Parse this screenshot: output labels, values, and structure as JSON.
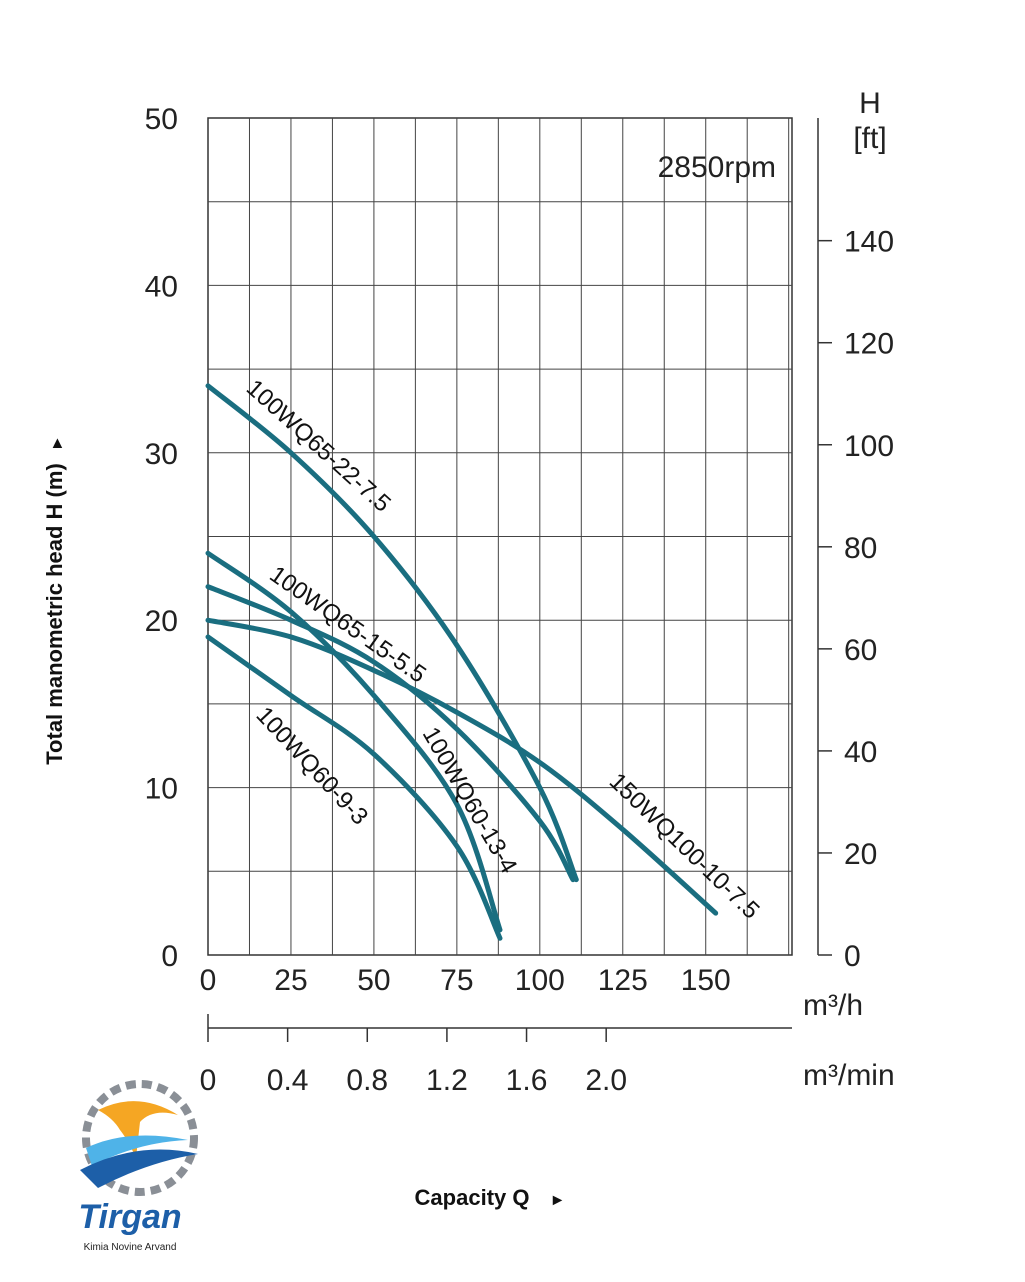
{
  "chart_data": {
    "type": "line",
    "title": "",
    "annotation": "2850rpm",
    "ylabel": "Total manometric head H (m)",
    "ylabel_arrow": "►",
    "xlabel": "Capacity Q",
    "xlabel_arrow": "►",
    "ylim": [
      0,
      50
    ],
    "xlim": [
      0,
      176
    ],
    "y_ticks": [
      "0",
      "10",
      "20",
      "30",
      "40",
      "50"
    ],
    "x_ticks": [
      "0",
      "25",
      "50",
      "75",
      "100",
      "125",
      "150"
    ],
    "x_units": "m³/h",
    "secondary_x": {
      "units": "m³/min",
      "ticks": [
        "0",
        "0.4",
        "0.8",
        "1.2",
        "1.6",
        "2.0"
      ],
      "tick_values": [
        0,
        0.4,
        0.8,
        1.2,
        1.6,
        2.0
      ]
    },
    "secondary_y": {
      "title_line1": "H",
      "title_line2": "[ft]",
      "ticks": [
        "0",
        "20",
        "40",
        "60",
        "80",
        "100",
        "120",
        "140"
      ],
      "tick_values": [
        0,
        20,
        40,
        60,
        80,
        100,
        120,
        140
      ]
    },
    "grid": true,
    "series": [
      {
        "name": "100WQ65-22-7.5",
        "points": [
          [
            0,
            34
          ],
          [
            25,
            30
          ],
          [
            50,
            25
          ],
          [
            75,
            18.5
          ],
          [
            100,
            10
          ],
          [
            111,
            4.5
          ]
        ]
      },
      {
        "name": "100WQ65-15-5.5",
        "points": [
          [
            0,
            22
          ],
          [
            25,
            20
          ],
          [
            50,
            17.5
          ],
          [
            75,
            13.5
          ],
          [
            100,
            8
          ],
          [
            110,
            4.5
          ]
        ]
      },
      {
        "name": "100WQ60-13-4",
        "points": [
          [
            0,
            24
          ],
          [
            25,
            20.5
          ],
          [
            50,
            15.5
          ],
          [
            75,
            9
          ],
          [
            88,
            1.5
          ]
        ]
      },
      {
        "name": "100WQ60-9-3",
        "points": [
          [
            0,
            19
          ],
          [
            25,
            15.5
          ],
          [
            50,
            12
          ],
          [
            75,
            6.5
          ],
          [
            88,
            1
          ]
        ]
      },
      {
        "name": "150WQ100-10-7.5",
        "points": [
          [
            0,
            20
          ],
          [
            25,
            19
          ],
          [
            50,
            17
          ],
          [
            75,
            14.5
          ],
          [
            100,
            11.5
          ],
          [
            125,
            7.5
          ],
          [
            153,
            2.5
          ]
        ]
      }
    ],
    "line_color": "#1a6e80"
  },
  "logo": {
    "name": "Tirgan",
    "tagline": "Kimia Novine Arvand",
    "colors": {
      "orange": "#f5a623",
      "blue": "#1d5fa8",
      "light_blue": "#4fb3e8",
      "gear": "#8a8f96"
    }
  }
}
